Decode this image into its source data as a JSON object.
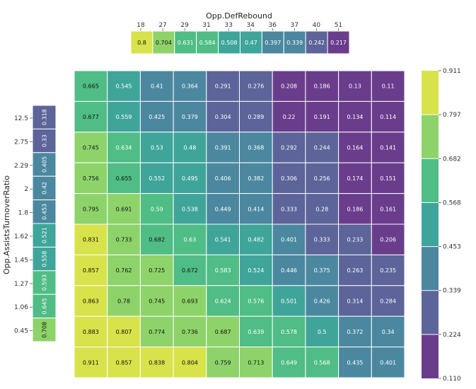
{
  "chart_data": {
    "type": "heatmap",
    "xlabel": "Opp.DefRebound",
    "ylabel": "Opp.AssistsTurnoverRatio",
    "x_ticks": [
      "18",
      "27",
      "29",
      "31",
      "33",
      "34",
      "36",
      "37",
      "40",
      "51"
    ],
    "y_ticks": [
      "12.5",
      "2.75",
      "2.29",
      "2",
      "1.8",
      "1.62",
      "1.45",
      "1.27",
      "1.06",
      "0.45"
    ],
    "top_marginal": [
      0.8,
      0.704,
      0.631,
      0.584,
      0.508,
      0.47,
      0.397,
      0.339,
      0.242,
      0.217
    ],
    "left_marginal": [
      0.318,
      0.33,
      0.405,
      0.42,
      0.453,
      0.521,
      0.558,
      0.593,
      0.645,
      0.708
    ],
    "matrix": [
      [
        0.665,
        0.545,
        0.41,
        0.364,
        0.291,
        0.276,
        0.208,
        0.186,
        0.13,
        0.11
      ],
      [
        0.677,
        0.559,
        0.425,
        0.379,
        0.304,
        0.289,
        0.22,
        0.191,
        0.134,
        0.114
      ],
      [
        0.745,
        0.634,
        0.53,
        0.48,
        0.391,
        0.368,
        0.292,
        0.244,
        0.164,
        0.141
      ],
      [
        0.756,
        0.655,
        0.552,
        0.495,
        0.406,
        0.382,
        0.306,
        0.256,
        0.174,
        0.151
      ],
      [
        0.795,
        0.691,
        0.59,
        0.538,
        0.449,
        0.414,
        0.333,
        0.28,
        0.186,
        0.161
      ],
      [
        0.831,
        0.733,
        0.682,
        0.63,
        0.541,
        0.482,
        0.401,
        0.333,
        0.233,
        0.206
      ],
      [
        0.857,
        0.762,
        0.725,
        0.672,
        0.583,
        0.524,
        0.446,
        0.375,
        0.263,
        0.235
      ],
      [
        0.863,
        0.78,
        0.745,
        0.693,
        0.624,
        0.576,
        0.501,
        0.426,
        0.314,
        0.284
      ],
      [
        0.883,
        0.807,
        0.774,
        0.736,
        0.687,
        0.639,
        0.578,
        0.5,
        0.372,
        0.34
      ],
      [
        0.911,
        0.857,
        0.838,
        0.804,
        0.759,
        0.713,
        0.649,
        0.568,
        0.435,
        0.401
      ]
    ],
    "colorbar": {
      "ticks": [
        "0.911",
        "0.797",
        "0.682",
        "0.568",
        "0.453",
        "0.339",
        "0.224",
        "0.110"
      ],
      "min": 0.11,
      "max": 0.911,
      "bins": 7
    },
    "palette": [
      "#6a3d8c",
      "#5c6499",
      "#4b88a0",
      "#3fa59a",
      "#4fbd85",
      "#8ed36a",
      "#d8e24a"
    ]
  }
}
